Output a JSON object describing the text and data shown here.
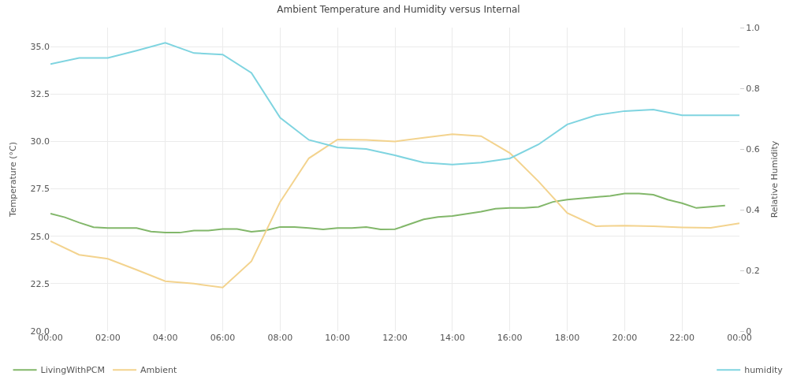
{
  "chart_data": {
    "type": "line",
    "title": "Ambient Temperature and Humidity versus Internal",
    "ylabel": "Temperature (°C)",
    "y2label": "Relative Humidity",
    "xlim": [
      0,
      24
    ],
    "xticks": [
      {
        "value": 0,
        "label": "00:00"
      },
      {
        "value": 2,
        "label": "02:00"
      },
      {
        "value": 4,
        "label": "04:00"
      },
      {
        "value": 6,
        "label": "06:00"
      },
      {
        "value": 8,
        "label": "08:00"
      },
      {
        "value": 10,
        "label": "10:00"
      },
      {
        "value": 12,
        "label": "12:00"
      },
      {
        "value": 14,
        "label": "14:00"
      },
      {
        "value": 16,
        "label": "16:00"
      },
      {
        "value": 18,
        "label": "18:00"
      },
      {
        "value": 20,
        "label": "20:00"
      },
      {
        "value": 22,
        "label": "22:00"
      },
      {
        "value": 24,
        "label": "00:00"
      }
    ],
    "ylim": [
      20,
      36
    ],
    "yticks": [
      {
        "value": 20,
        "label": "20.0"
      },
      {
        "value": 22.5,
        "label": "22.5"
      },
      {
        "value": 25,
        "label": "25.0"
      },
      {
        "value": 27.5,
        "label": "27.5"
      },
      {
        "value": 30,
        "label": "30.0"
      },
      {
        "value": 32.5,
        "label": "32.5"
      },
      {
        "value": 35,
        "label": "35.0"
      }
    ],
    "y2lim": [
      0,
      1
    ],
    "y2ticks": [
      0,
      0.2,
      0.4,
      0.6,
      0.8,
      {
        "value": 1,
        "label": "1.0"
      }
    ],
    "grid": true,
    "legend": "bottom",
    "marker": "none",
    "line_style": "solid",
    "series": [
      {
        "name": "LivingWithPCM",
        "color": "#82b76a",
        "x": [
          0,
          0.5,
          1,
          1.5,
          2,
          3,
          3.5,
          4,
          4.5,
          5,
          5.5,
          6,
          6.5,
          7,
          7.5,
          8,
          8.5,
          9,
          9.5,
          10,
          10.5,
          11,
          11.5,
          12,
          13,
          13.5,
          14,
          15,
          15.5,
          16,
          16.5,
          17,
          17.5,
          18,
          19,
          19.5,
          20,
          20.5,
          21,
          21.5,
          22,
          22.5,
          23.5
        ],
        "values": [
          26.19,
          26.0,
          25.72,
          25.48,
          25.43,
          25.43,
          25.25,
          25.19,
          25.19,
          25.3,
          25.3,
          25.38,
          25.38,
          25.24,
          25.31,
          25.49,
          25.49,
          25.43,
          25.36,
          25.43,
          25.43,
          25.49,
          25.36,
          25.37,
          25.89,
          26.02,
          26.07,
          26.3,
          26.45,
          26.49,
          26.49,
          26.55,
          26.81,
          26.93,
          27.06,
          27.13,
          27.25,
          27.25,
          27.19,
          26.93,
          26.74,
          26.49,
          26.62
        ]
      },
      {
        "name": "Ambient",
        "color": "#f3d38e",
        "x": [
          0,
          1,
          2,
          3,
          4,
          5,
          6,
          7,
          8,
          9,
          10,
          11,
          12,
          13,
          14,
          15,
          16,
          17,
          18,
          19,
          20,
          21,
          22,
          23,
          24
        ],
        "values": [
          24.74,
          24.02,
          23.81,
          23.23,
          22.63,
          22.5,
          22.3,
          23.68,
          26.81,
          29.11,
          30.1,
          30.08,
          30.0,
          30.19,
          30.38,
          30.28,
          29.39,
          27.89,
          26.23,
          25.53,
          25.56,
          25.53,
          25.47,
          25.44,
          25.68
        ]
      },
      {
        "name": "humidity",
        "color": "#7fd4e0",
        "axis": "y2",
        "x": [
          0,
          1,
          2,
          3,
          4,
          5,
          6,
          7,
          8,
          9,
          10,
          11,
          12,
          13,
          14,
          15,
          16,
          17,
          18,
          19,
          20,
          21,
          22,
          23,
          24
        ],
        "values": [
          0.88,
          0.9,
          0.9,
          0.924,
          0.95,
          0.916,
          0.911,
          0.851,
          0.703,
          0.63,
          0.605,
          0.6,
          0.579,
          0.555,
          0.549,
          0.555,
          0.569,
          0.615,
          0.681,
          0.711,
          0.725,
          0.73,
          0.711,
          0.711,
          0.711
        ]
      }
    ]
  }
}
